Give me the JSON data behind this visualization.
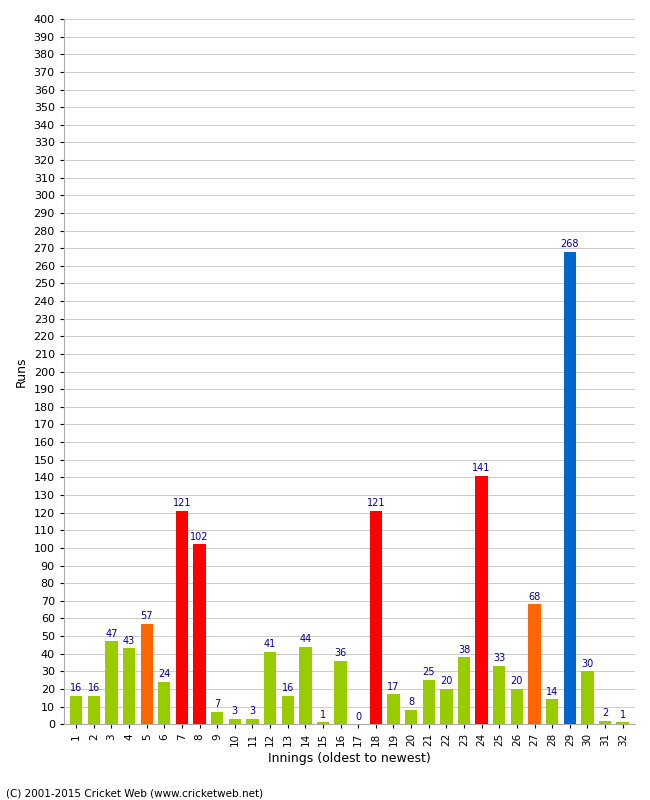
{
  "xlabel": "Innings (oldest to newest)",
  "ylabel": "Runs",
  "footer": "(C) 2001-2015 Cricket Web (www.cricketweb.net)",
  "values": [
    16,
    16,
    47,
    43,
    57,
    24,
    121,
    102,
    7,
    3,
    3,
    41,
    16,
    44,
    1,
    36,
    0,
    121,
    17,
    8,
    25,
    20,
    38,
    141,
    33,
    20,
    68,
    14,
    268,
    30,
    2,
    1
  ],
  "colors": [
    "#99cc00",
    "#99cc00",
    "#99cc00",
    "#99cc00",
    "#ff6600",
    "#99cc00",
    "#ff0000",
    "#ff0000",
    "#99cc00",
    "#99cc00",
    "#99cc00",
    "#99cc00",
    "#99cc00",
    "#99cc00",
    "#99cc00",
    "#99cc00",
    "#99cc00",
    "#ff0000",
    "#99cc00",
    "#99cc00",
    "#99cc00",
    "#99cc00",
    "#99cc00",
    "#ff0000",
    "#99cc00",
    "#99cc00",
    "#ff6600",
    "#99cc00",
    "#0066cc",
    "#99cc00",
    "#99cc00",
    "#99cc00"
  ],
  "num_innings": 32,
  "ylim": [
    0,
    400
  ],
  "background_color": "#ffffff",
  "grid_color": "#cccccc",
  "label_color": "#000099",
  "label_fontsize": 7,
  "axis_label_fontsize": 9,
  "tick_fontsize": 8,
  "xtick_fontsize": 7.5
}
